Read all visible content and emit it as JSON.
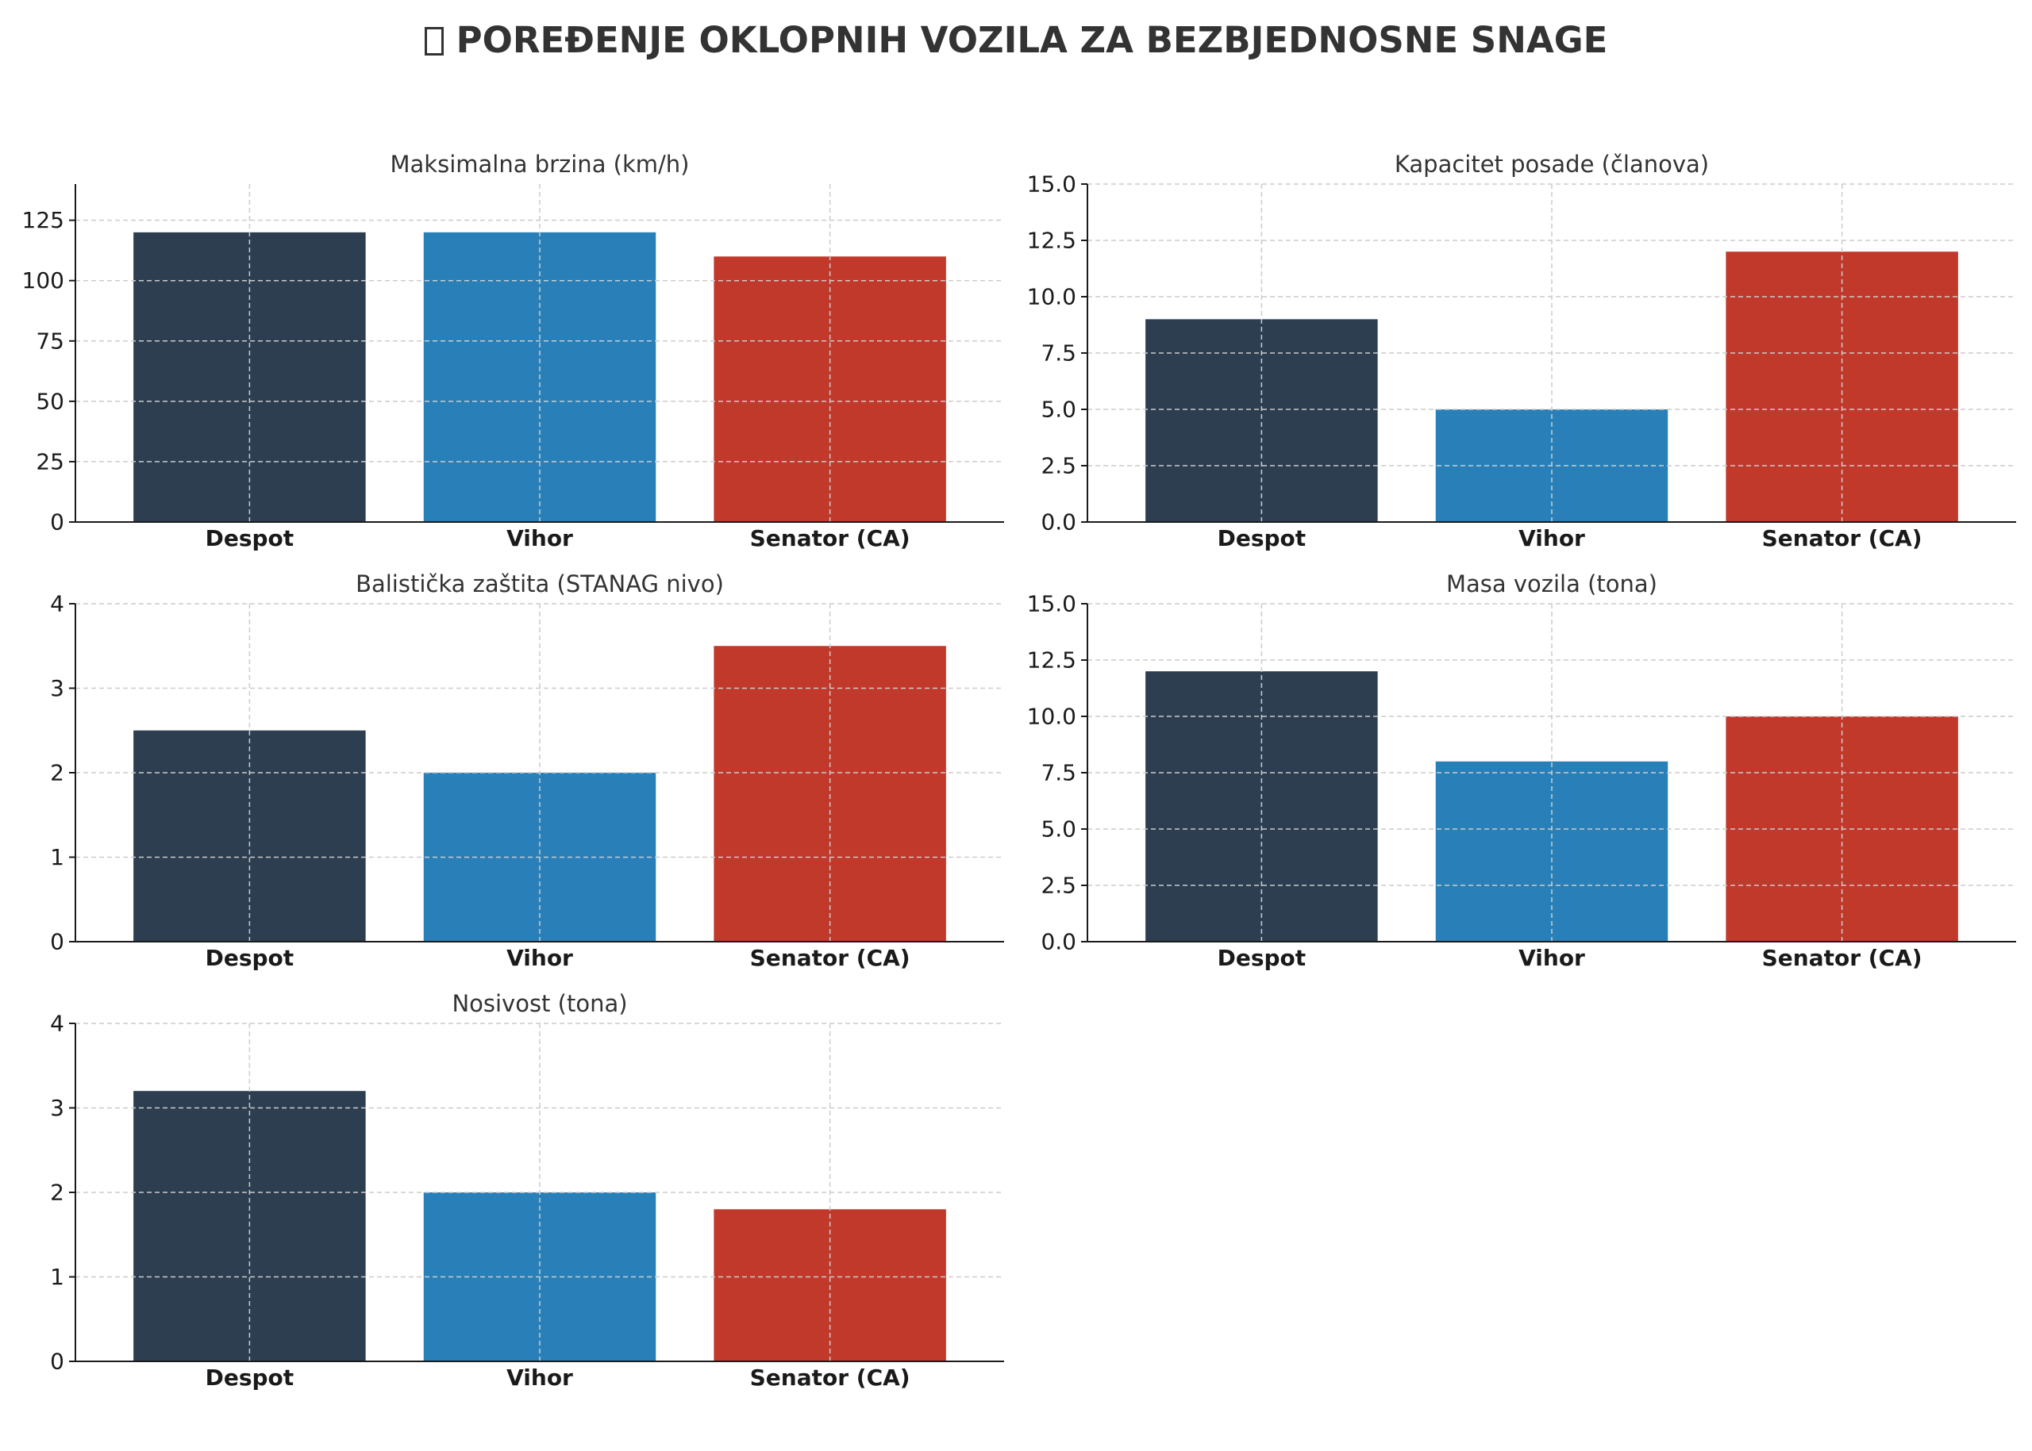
{
  "page": {
    "title_icon": "missing-glyph-box-icon",
    "title": "POREĐENJE OKLOPNIH VOZILA ZA BEZBJEDNOSNE SNAGE"
  },
  "colors": {
    "series": [
      "#2c3e50",
      "#2980b9",
      "#c0392b"
    ],
    "grid": "#cccccc",
    "axis": "#1a1a1a"
  },
  "chart_data": [
    {
      "type": "bar",
      "title": "Maksimalna brzina (km/h)",
      "categories": [
        "Despot",
        "Vihor",
        "Senator (CA)"
      ],
      "values": [
        120,
        120,
        110
      ],
      "xlabel": "",
      "ylabel": "",
      "ylim": [
        0,
        140
      ],
      "yticks": [
        "0",
        "25",
        "50",
        "75",
        "100",
        "125"
      ],
      "grid": true
    },
    {
      "type": "bar",
      "title": "Kapacitet posade (članova)",
      "categories": [
        "Despot",
        "Vihor",
        "Senator (CA)"
      ],
      "values": [
        9,
        5,
        12
      ],
      "xlabel": "",
      "ylabel": "",
      "ylim": [
        0,
        15
      ],
      "yticks": [
        "0.0",
        "2.5",
        "5.0",
        "7.5",
        "10.0",
        "12.5",
        "15.0"
      ],
      "grid": true
    },
    {
      "type": "bar",
      "title": "Balistička zaštita (STANAG nivo)",
      "categories": [
        "Despot",
        "Vihor",
        "Senator (CA)"
      ],
      "values": [
        2.5,
        2,
        3.5
      ],
      "xlabel": "",
      "ylabel": "",
      "ylim": [
        0,
        4
      ],
      "yticks": [
        "0",
        "1",
        "2",
        "3",
        "4"
      ],
      "grid": true
    },
    {
      "type": "bar",
      "title": "Masa vozila (tona)",
      "categories": [
        "Despot",
        "Vihor",
        "Senator (CA)"
      ],
      "values": [
        12,
        8,
        10
      ],
      "xlabel": "",
      "ylabel": "",
      "ylim": [
        0,
        15
      ],
      "yticks": [
        "0.0",
        "2.5",
        "5.0",
        "7.5",
        "10.0",
        "12.5",
        "15.0"
      ],
      "grid": true
    },
    {
      "type": "bar",
      "title": "Nosivost (tona)",
      "categories": [
        "Despot",
        "Vihor",
        "Senator (CA)"
      ],
      "values": [
        3.2,
        2,
        1.8
      ],
      "xlabel": "",
      "ylabel": "",
      "ylim": [
        0,
        4
      ],
      "yticks": [
        "0",
        "1",
        "2",
        "3",
        "4"
      ],
      "grid": true
    }
  ]
}
